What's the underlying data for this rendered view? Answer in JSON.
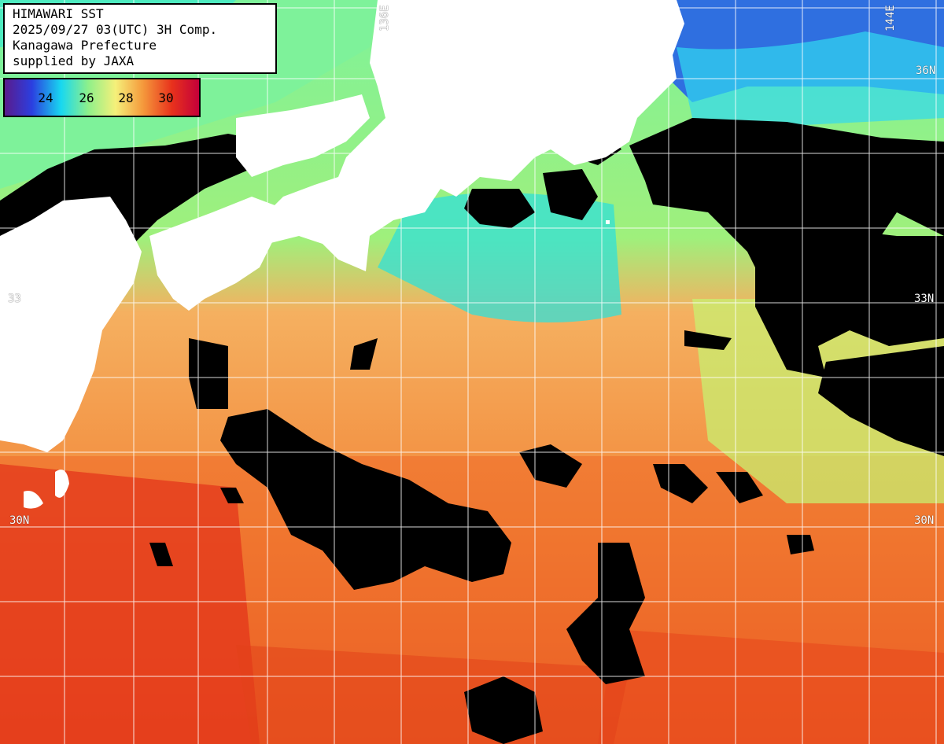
{
  "title_lines": [
    "HIMAWARI SST",
    "2025/09/27 03(UTC) 3H Comp.",
    "Kanagawa Prefecture",
    "supplied by JAXA"
  ],
  "legend": {
    "ticks": [
      "24",
      "26",
      "28",
      "30"
    ],
    "colors": [
      "#5a1b8c",
      "#2b3fe0",
      "#18d8f0",
      "#8ef08a",
      "#f5f07a",
      "#f59a3c",
      "#e8321c",
      "#c4003a"
    ]
  },
  "grid_labels": {
    "lat_33": "33N",
    "lat_30": "30N",
    "lat_33_left": "33",
    "lon_136": "136E",
    "lon_144": "144E",
    "lat_36": "36N"
  },
  "palette": {
    "land": "#ffffff",
    "cloud": "#000000",
    "cold_sea": "#2ad8e8",
    "cool_sea": "#7ef29a",
    "mid_sea": "#f2e878",
    "warm_sea": "#f5a050",
    "hot_sea": "#f06a28",
    "hottest_sea": "#e2321a",
    "grid": "#ffffff"
  }
}
